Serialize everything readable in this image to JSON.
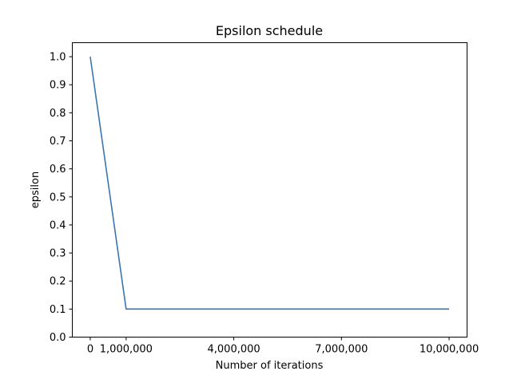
{
  "chart_data": {
    "type": "line",
    "title": "Epsilon schedule",
    "xlabel": "Number of iterations",
    "ylabel": "epsilon",
    "xlim": [
      -500000,
      10500000
    ],
    "ylim": [
      0,
      1.05
    ],
    "grid": false,
    "x_ticks": [
      {
        "value": 0,
        "label": "0"
      },
      {
        "value": 1000000,
        "label": "1,000,000"
      },
      {
        "value": 4000000,
        "label": "4,000,000"
      },
      {
        "value": 7000000,
        "label": "7,000,000"
      },
      {
        "value": 10000000,
        "label": "10,000,000"
      }
    ],
    "y_ticks": [
      {
        "value": 0.0,
        "label": "0.0"
      },
      {
        "value": 0.1,
        "label": "0.1"
      },
      {
        "value": 0.2,
        "label": "0.2"
      },
      {
        "value": 0.3,
        "label": "0.3"
      },
      {
        "value": 0.4,
        "label": "0.4"
      },
      {
        "value": 0.5,
        "label": "0.5"
      },
      {
        "value": 0.6,
        "label": "0.6"
      },
      {
        "value": 0.7,
        "label": "0.7"
      },
      {
        "value": 0.8,
        "label": "0.8"
      },
      {
        "value": 0.9,
        "label": "0.9"
      },
      {
        "value": 1.0,
        "label": "1.0"
      }
    ],
    "series": [
      {
        "color": "#3b75af",
        "points": [
          {
            "x": 0,
            "y": 1.0
          },
          {
            "x": 1000000,
            "y": 0.1
          },
          {
            "x": 10000000,
            "y": 0.1
          }
        ]
      }
    ]
  }
}
